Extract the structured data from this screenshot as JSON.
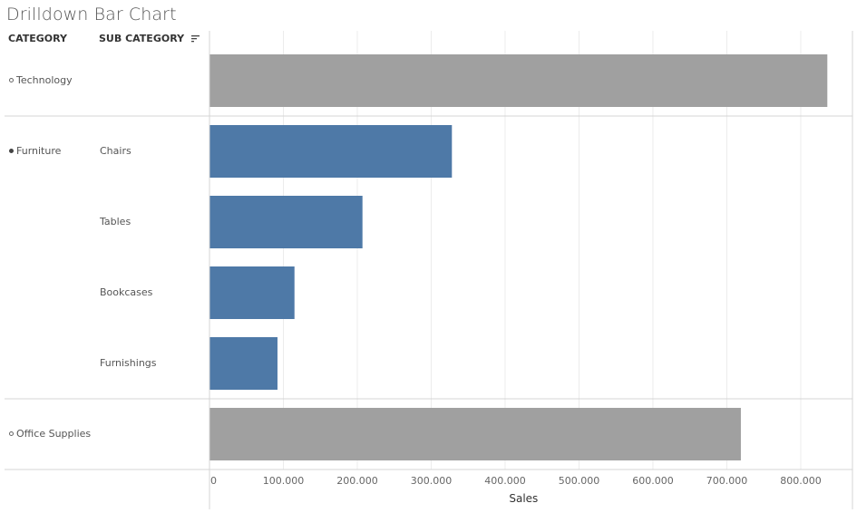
{
  "title": "Drilldown Bar Chart",
  "headers": {
    "category": "CATEGORY",
    "sub_category": "SUB CATEGORY"
  },
  "colors": {
    "collapsed_bar": "#a0a0a0",
    "expanded_bar": "#4e79a7"
  },
  "icons": {
    "sort": "sort-descending-icon",
    "collapsed": "hollow-circle-icon",
    "expanded": "filled-circle-icon"
  },
  "chart_data": {
    "type": "bar",
    "orientation": "horizontal",
    "xlabel": "Sales",
    "xlim": [
      0,
      870000
    ],
    "x_ticks": [
      0,
      100000,
      200000,
      300000,
      400000,
      500000,
      600000,
      700000,
      800000
    ],
    "x_tick_labels": [
      "0",
      "100.000",
      "200.000",
      "300.000",
      "400.000",
      "500.000",
      "600.000",
      "700.000",
      "800.000"
    ],
    "grid": true,
    "groups": [
      {
        "category": "Technology",
        "expanded": false,
        "rows": [
          {
            "sub_category": "",
            "value": 836000
          }
        ]
      },
      {
        "category": "Furniture",
        "expanded": true,
        "rows": [
          {
            "sub_category": "Chairs",
            "value": 328000
          },
          {
            "sub_category": "Tables",
            "value": 207000
          },
          {
            "sub_category": "Bookcases",
            "value": 115000
          },
          {
            "sub_category": "Furnishings",
            "value": 92000
          }
        ]
      },
      {
        "category": "Office Supplies",
        "expanded": false,
        "rows": [
          {
            "sub_category": "",
            "value": 719000
          }
        ]
      }
    ]
  }
}
